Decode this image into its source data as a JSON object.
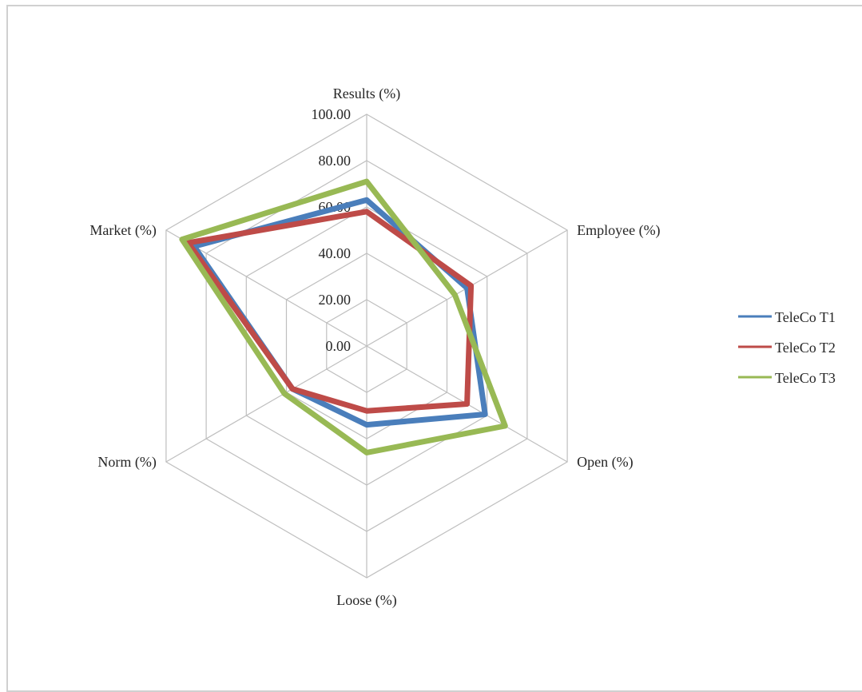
{
  "chart_data": {
    "type": "radar",
    "axes": [
      "Results (%)",
      "Employee (%)",
      "Open (%)",
      "Loose (%)",
      "Norm (%)",
      "Market (%)"
    ],
    "tick_labels": [
      "0.00",
      "20.00",
      "40.00",
      "60.00",
      "80.00",
      "100.00"
    ],
    "ylim": [
      0,
      100
    ],
    "grid": true,
    "legend_position": "right",
    "series": [
      {
        "name": "TeleCo T1",
        "color": "#4a7ebb",
        "values": [
          63,
          50,
          59,
          34,
          37,
          86
        ]
      },
      {
        "name": "TeleCo T2",
        "color": "#be4b48",
        "values": [
          58,
          52,
          50,
          28,
          37,
          89
        ]
      },
      {
        "name": "TeleCo T3",
        "color": "#98b954",
        "values": [
          71,
          44,
          69,
          46,
          41,
          92
        ]
      }
    ]
  }
}
